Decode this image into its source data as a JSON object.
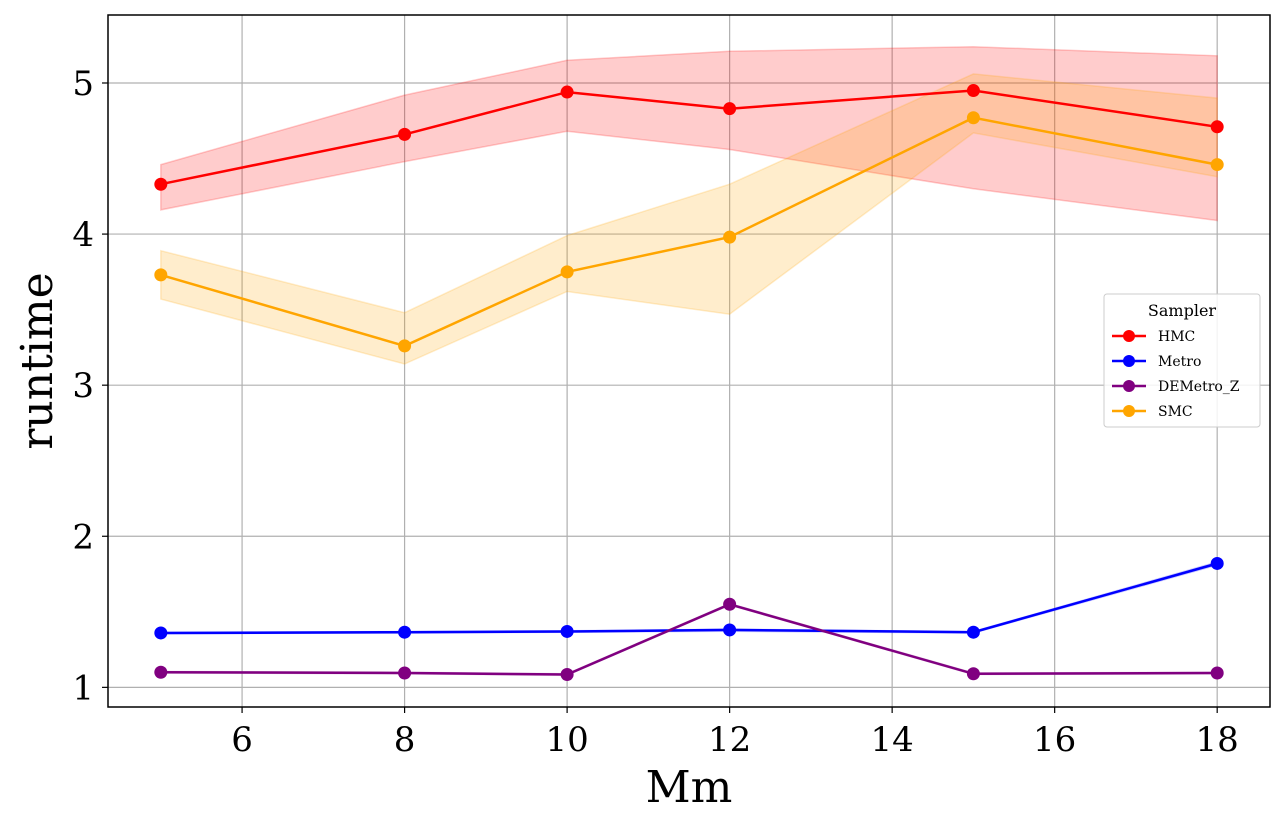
{
  "chart_data": {
    "type": "line",
    "xlabel": "Mm",
    "ylabel": "runtime",
    "xlim": [
      4.35,
      18.65
    ],
    "ylim": [
      0.87,
      5.45
    ],
    "x_ticks": [
      6,
      8,
      10,
      12,
      14,
      16,
      18
    ],
    "x_tick_labels": [
      "6",
      "8",
      "10",
      "12",
      "14",
      "16",
      "18"
    ],
    "y_ticks": [
      1,
      2,
      3,
      4,
      5
    ],
    "y_tick_labels": [
      "1",
      "2",
      "3",
      "4",
      "5"
    ],
    "grid": true,
    "legend": {
      "title": "Sampler",
      "placement": "center-right"
    },
    "x": [
      5,
      8,
      10,
      12,
      15,
      18
    ],
    "series": [
      {
        "name": "HMC",
        "color": "#ff0000",
        "values": [
          4.33,
          4.66,
          4.94,
          4.83,
          4.95,
          4.71
        ],
        "band_lower": [
          4.16,
          4.48,
          4.68,
          4.56,
          4.3,
          4.09
        ],
        "band_upper": [
          4.46,
          4.92,
          5.15,
          5.21,
          5.24,
          5.18
        ]
      },
      {
        "name": "Metro",
        "color": "#0000ff",
        "values": [
          1.36,
          1.365,
          1.37,
          1.38,
          1.365,
          1.82
        ],
        "band_lower": [
          1.355,
          1.36,
          1.365,
          1.372,
          1.36,
          1.81
        ],
        "band_upper": [
          1.365,
          1.37,
          1.375,
          1.385,
          1.37,
          1.83
        ]
      },
      {
        "name": "DEMetro_Z",
        "color": "#800080",
        "values": [
          1.1,
          1.095,
          1.085,
          1.55,
          1.09,
          1.095
        ],
        "band_lower": [
          1.095,
          1.09,
          1.08,
          1.545,
          1.085,
          1.09
        ],
        "band_upper": [
          1.105,
          1.1,
          1.09,
          1.555,
          1.095,
          1.1
        ]
      },
      {
        "name": "SMC",
        "color": "#ffa500",
        "values": [
          3.73,
          3.26,
          3.75,
          3.98,
          4.77,
          4.46
        ],
        "band_lower": [
          3.57,
          3.14,
          3.62,
          3.47,
          4.67,
          4.38
        ],
        "band_upper": [
          3.89,
          3.48,
          3.99,
          4.33,
          5.06,
          4.9
        ]
      }
    ]
  }
}
